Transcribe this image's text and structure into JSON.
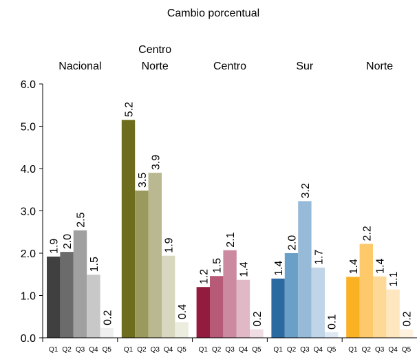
{
  "chart_data": {
    "type": "grouped_bar",
    "title": "Cambio porcentual",
    "quintiles": [
      "Q1",
      "Q2",
      "Q3",
      "Q4",
      "Q5"
    ],
    "groups": [
      {
        "name": "Nacional",
        "colors": [
          "#404040",
          "#6b6b6b",
          "#a0a0a0",
          "#c8c8c8",
          "#efefef"
        ],
        "values": [
          1.92,
          2.03,
          2.54,
          1.49,
          0.23
        ],
        "value_labels": [
          "1.9",
          "2.0",
          "2.5",
          "1.5",
          "0.2"
        ]
      },
      {
        "name": "Centro\nNorte",
        "colors": [
          "#6e6d1e",
          "#9b9a5e",
          "#b9b890",
          "#d8d8c0",
          "#ededdf"
        ],
        "values": [
          5.15,
          3.48,
          3.9,
          1.94,
          0.37
        ],
        "value_labels": [
          "5.2",
          "3.5",
          "3.9",
          "1.9",
          "0.4"
        ]
      },
      {
        "name": "Centro",
        "colors": [
          "#931c3e",
          "#b75a78",
          "#cc8aa0",
          "#e0b8c6",
          "#f0dde3"
        ],
        "values": [
          1.2,
          1.46,
          2.07,
          1.37,
          0.2
        ],
        "value_labels": [
          "1.2",
          "1.5",
          "2.1",
          "1.4",
          "0.2"
        ]
      },
      {
        "name": "Sur",
        "colors": [
          "#2b6aa0",
          "#6a9fc8",
          "#97bad8",
          "#c0d5e8",
          "#dde8f2"
        ],
        "values": [
          1.4,
          2.0,
          3.23,
          1.66,
          0.13
        ],
        "value_labels": [
          "1.4",
          "2.0",
          "3.2",
          "1.7",
          "0.1"
        ]
      },
      {
        "name": "Norte",
        "colors": [
          "#fbb124",
          "#fdc96a",
          "#fdd896",
          "#fee6bf",
          "#fef1dd"
        ],
        "values": [
          1.44,
          2.22,
          1.45,
          1.14,
          0.2
        ],
        "value_labels": [
          "1.4",
          "2.2",
          "1.4",
          "1.1",
          "0.2"
        ]
      }
    ],
    "ylim": [
      0,
      6
    ],
    "yticks": [
      {
        "value": 0,
        "label": "0.0"
      },
      {
        "value": 1,
        "label": "1.0"
      },
      {
        "value": 2,
        "label": "2.0"
      },
      {
        "value": 3,
        "label": "3.0"
      },
      {
        "value": 4,
        "label": "4.0"
      },
      {
        "value": 5,
        "label": "5.0"
      },
      {
        "value": 6,
        "label": "6.0"
      }
    ]
  }
}
